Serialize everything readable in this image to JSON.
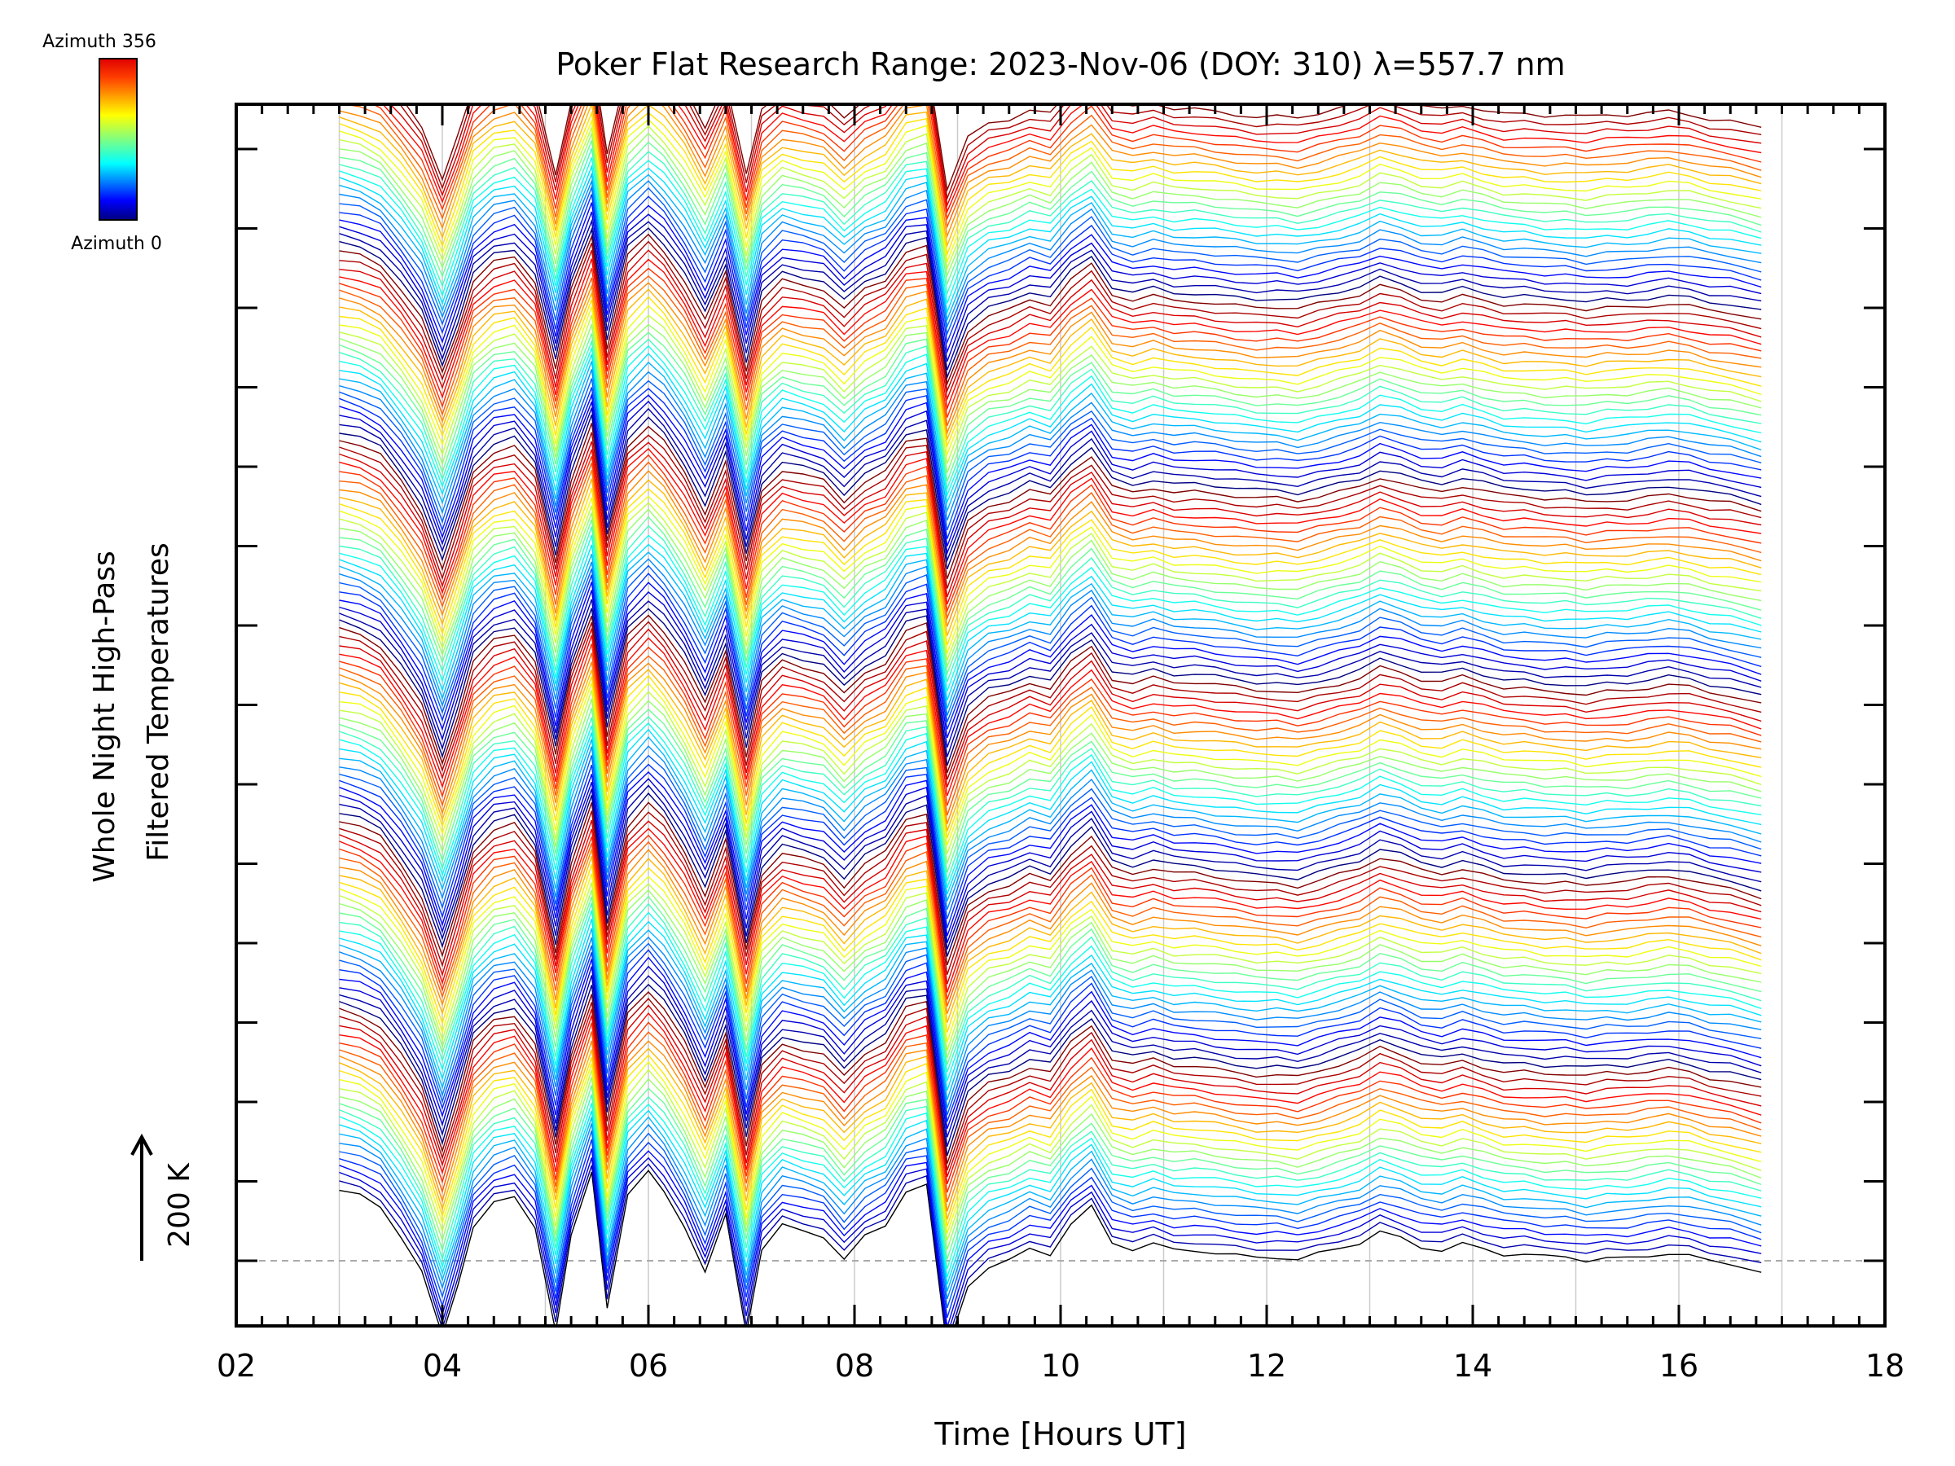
{
  "chart_data": {
    "type": "line",
    "title": "Poker Flat Research Range: 2023-Nov-06 (DOY: 310) λ=557.7 nm",
    "xlabel": "Time [Hours UT]",
    "ylabel_line1": "Whole Night High-Pass",
    "ylabel_line2": "Filtered Temperatures",
    "scale_label": "200 K",
    "xlim": [
      2,
      18
    ],
    "x_ticks": [
      "02",
      "04",
      "06",
      "08",
      "10",
      "12",
      "14",
      "16",
      "18"
    ],
    "x_tick_values": [
      2,
      4,
      6,
      8,
      10,
      12,
      14,
      16,
      18
    ],
    "legend": {
      "top_label": "Azimuth 356",
      "bottom_label": "Azimuth 0",
      "placement": "top-left"
    },
    "colors": {
      "axis": "#000000",
      "grid": "#cccccc",
      "baseline": "#aaaaaa"
    },
    "series_count": 144,
    "azimuth_range": [
      0,
      356
    ],
    "x": [
      3.0,
      3.2,
      3.4,
      3.6,
      3.8,
      4.0,
      4.15,
      4.3,
      4.5,
      4.7,
      4.9,
      5.1,
      5.25,
      5.45,
      5.6,
      5.8,
      6.0,
      6.15,
      6.35,
      6.55,
      6.75,
      6.95,
      7.1,
      7.3,
      7.5,
      7.7,
      7.9,
      8.1,
      8.3,
      8.5,
      8.7,
      8.9,
      9.1,
      9.3,
      9.5,
      9.7,
      9.9,
      10.1,
      10.3,
      10.5,
      10.7,
      10.9,
      11.1,
      11.3,
      11.5,
      11.7,
      11.9,
      12.1,
      12.3,
      12.5,
      12.7,
      12.9,
      13.1,
      13.3,
      13.5,
      13.7,
      13.9,
      14.1,
      14.3,
      14.5,
      14.7,
      14.9,
      15.1,
      15.3,
      15.5,
      15.7,
      15.9,
      16.1,
      16.3,
      16.5,
      16.8
    ],
    "shape_rel_K": [
      120,
      110,
      90,
      40,
      -20,
      -130,
      -40,
      60,
      100,
      110,
      60,
      -120,
      40,
      150,
      -80,
      110,
      150,
      120,
      60,
      -20,
      80,
      -120,
      20,
      60,
      50,
      40,
      0,
      40,
      60,
      120,
      130,
      -150,
      -40,
      -10,
      0,
      20,
      10,
      60,
      90,
      30,
      20,
      30,
      20,
      20,
      15,
      10,
      5,
      5,
      0,
      10,
      20,
      30,
      50,
      40,
      25,
      20,
      30,
      20,
      10,
      10,
      5,
      5,
      0,
      5,
      5,
      10,
      15,
      10,
      0,
      -5,
      -20
    ]
  }
}
